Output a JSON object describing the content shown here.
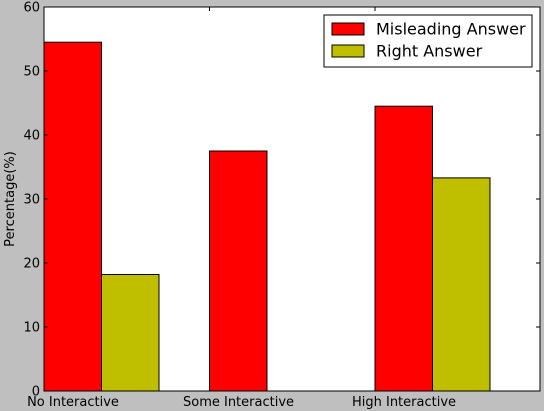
{
  "chart_data": {
    "type": "bar",
    "title": "",
    "xlabel": "",
    "ylabel": "Percentage(%)",
    "categories": [
      "No Interactive",
      "Some Interactive",
      "High Interactive"
    ],
    "ylim": [
      0,
      60
    ],
    "yticks": [
      0,
      10,
      20,
      30,
      40,
      50,
      60
    ],
    "grid": false,
    "legend_position": "top-right",
    "series": [
      {
        "name": "Misleading Answer",
        "color": "#ff0000",
        "values": [
          54.5,
          37.5,
          44.5
        ]
      },
      {
        "name": "Right Answer",
        "color": "#bfbf00",
        "values": [
          18.2,
          0,
          33.3
        ]
      }
    ]
  },
  "colors": {
    "background": "#bfbfbf",
    "plot_area": "#ffffff"
  }
}
